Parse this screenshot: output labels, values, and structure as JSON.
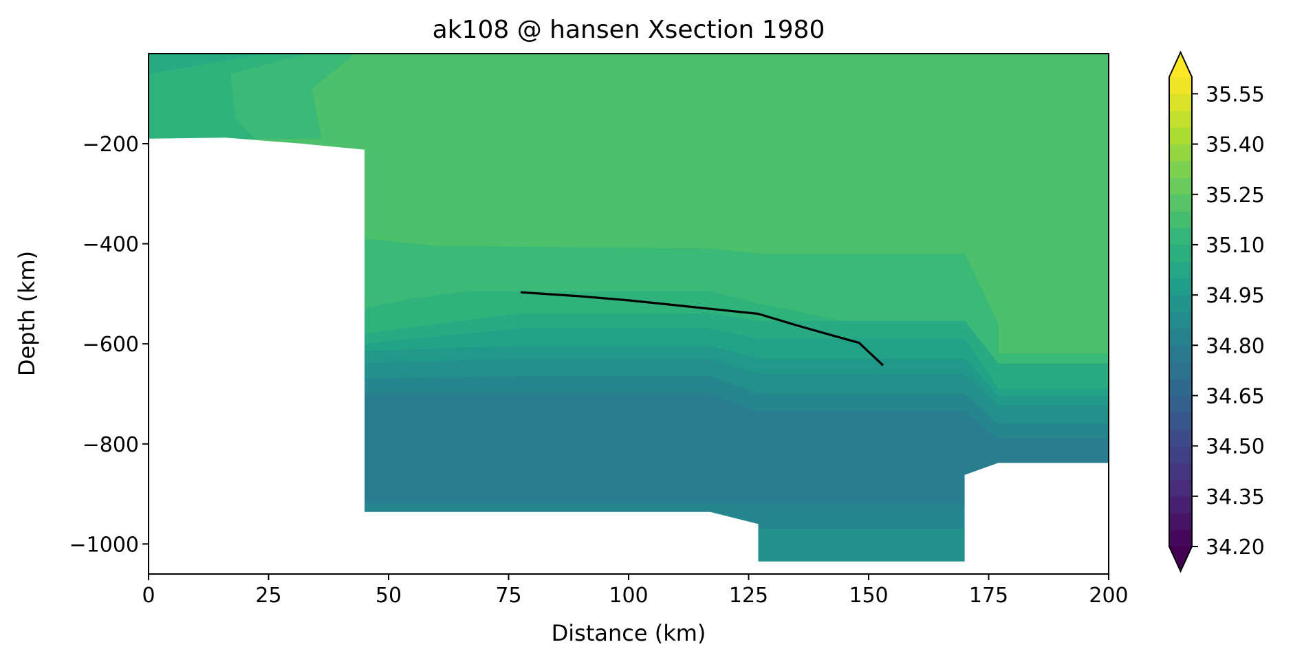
{
  "chart_data": {
    "type": "heatmap",
    "title": "ak108 @ hansen Xsection 1980",
    "xlabel": "Distance (km)",
    "ylabel": "Depth (km)",
    "xlim": [
      0,
      200
    ],
    "ylim": [
      -1060,
      -20
    ],
    "x_ticks": [
      0,
      25,
      50,
      75,
      100,
      125,
      150,
      175,
      200
    ],
    "x_tick_labels": [
      "0",
      "25",
      "50",
      "75",
      "100",
      "125",
      "150",
      "175",
      "200"
    ],
    "y_ticks": [
      -200,
      -400,
      -600,
      -800,
      -1000
    ],
    "y_tick_labels": [
      "−200",
      "−400",
      "−600",
      "−800",
      "−1000"
    ],
    "colormap": "viridis",
    "colorbar": {
      "min": 34.2,
      "max": 35.6,
      "step": 0.05,
      "extend": "both",
      "ticks": [
        34.2,
        34.35,
        34.5,
        34.65,
        34.8,
        34.95,
        35.1,
        35.25,
        35.4,
        35.55
      ],
      "tick_labels": [
        "34.20",
        "34.35",
        "34.50",
        "34.65",
        "34.80",
        "34.95",
        "35.10",
        "35.25",
        "35.40",
        "35.55"
      ]
    },
    "contour_bands": [
      {
        "level": 35.2,
        "poly": [
          [
            0,
            -20
          ],
          [
            200,
            -20
          ],
          [
            200,
            -1060
          ],
          [
            0,
            -1060
          ]
        ]
      },
      {
        "level": 35.15,
        "poly": [
          [
            0,
            -20
          ],
          [
            43,
            -20
          ],
          [
            34,
            -90
          ],
          [
            36,
            -190
          ],
          [
            0,
            -190
          ]
        ]
      },
      {
        "level": 35.1,
        "poly": [
          [
            0,
            -20
          ],
          [
            33,
            -20
          ],
          [
            17,
            -60
          ],
          [
            18,
            -150
          ],
          [
            22,
            -190
          ],
          [
            0,
            -190
          ]
        ]
      },
      {
        "level": 35.05,
        "poly": [
          [
            0,
            -20
          ],
          [
            24,
            -20
          ],
          [
            0,
            -60
          ]
        ]
      },
      {
        "level": 35.15,
        "poly": [
          [
            45,
            -390
          ],
          [
            60,
            -405
          ],
          [
            117,
            -410
          ],
          [
            127,
            -420
          ],
          [
            170,
            -420
          ],
          [
            177,
            -560
          ],
          [
            177,
            -620
          ],
          [
            200,
            -620
          ],
          [
            200,
            -1060
          ],
          [
            45,
            -1060
          ]
        ]
      },
      {
        "level": 35.1,
        "poly": [
          [
            45,
            -530
          ],
          [
            55,
            -510
          ],
          [
            67,
            -495
          ],
          [
            117,
            -495
          ],
          [
            127,
            -520
          ],
          [
            147,
            -560
          ],
          [
            170,
            -560
          ],
          [
            177,
            -650
          ],
          [
            200,
            -650
          ],
          [
            200,
            -1060
          ],
          [
            45,
            -1060
          ]
        ]
      },
      {
        "level": 35.05,
        "poly": [
          [
            45,
            -580
          ],
          [
            61,
            -560
          ],
          [
            77,
            -540
          ],
          [
            117,
            -540
          ],
          [
            127,
            -555
          ],
          [
            170,
            -555
          ],
          [
            177,
            -640
          ],
          [
            200,
            -640
          ],
          [
            200,
            -1060
          ],
          [
            45,
            -1060
          ]
        ]
      },
      {
        "level": 35.0,
        "poly": [
          [
            45,
            -600
          ],
          [
            77,
            -570
          ],
          [
            117,
            -570
          ],
          [
            127,
            -590
          ],
          [
            170,
            -590
          ],
          [
            177,
            -690
          ],
          [
            200,
            -690
          ],
          [
            200,
            -1060
          ],
          [
            45,
            -1060
          ]
        ]
      },
      {
        "level": 34.95,
        "poly": [
          [
            45,
            -615
          ],
          [
            77,
            -605
          ],
          [
            117,
            -605
          ],
          [
            127,
            -630
          ],
          [
            170,
            -630
          ],
          [
            177,
            -705
          ],
          [
            200,
            -705
          ],
          [
            200,
            -1060
          ],
          [
            45,
            -1060
          ]
        ]
      },
      {
        "level": 34.9,
        "poly": [
          [
            45,
            -640
          ],
          [
            77,
            -630
          ],
          [
            117,
            -630
          ],
          [
            127,
            -660
          ],
          [
            170,
            -660
          ],
          [
            177,
            -725
          ],
          [
            200,
            -725
          ],
          [
            200,
            -1060
          ],
          [
            45,
            -1060
          ]
        ]
      },
      {
        "level": 34.85,
        "poly": [
          [
            45,
            -670
          ],
          [
            77,
            -665
          ],
          [
            117,
            -665
          ],
          [
            127,
            -700
          ],
          [
            170,
            -700
          ],
          [
            177,
            -760
          ],
          [
            200,
            -760
          ],
          [
            200,
            -1060
          ],
          [
            45,
            -1060
          ]
        ]
      },
      {
        "level": 34.8,
        "poly": [
          [
            45,
            -700
          ],
          [
            77,
            -700
          ],
          [
            117,
            -700
          ],
          [
            127,
            -735
          ],
          [
            170,
            -735
          ],
          [
            177,
            -790
          ],
          [
            200,
            -790
          ],
          [
            200,
            -1060
          ],
          [
            45,
            -1060
          ]
        ]
      },
      {
        "level": 34.85,
        "poly": [
          [
            45,
            -920
          ],
          [
            200,
            -920
          ],
          [
            200,
            -1060
          ],
          [
            45,
            -1060
          ]
        ]
      },
      {
        "level": 34.9,
        "poly": [
          [
            117,
            -980
          ],
          [
            128,
            -970
          ],
          [
            170,
            -970
          ],
          [
            170,
            -1060
          ],
          [
            117,
            -1060
          ]
        ]
      }
    ],
    "line": {
      "x": [
        77.5,
        90,
        100,
        110,
        120,
        127,
        135,
        142,
        148,
        151,
        153
      ],
      "y": [
        -497,
        -505,
        -513,
        -523,
        -533,
        -540,
        -563,
        -582,
        -598,
        -625,
        -643
      ]
    },
    "mask_polygons": [
      [
        [
          0,
          -190
        ],
        [
          16,
          -188
        ],
        [
          32,
          -200
        ],
        [
          45,
          -212
        ],
        [
          45,
          -936
        ],
        [
          117,
          -936
        ],
        [
          127,
          -960
        ],
        [
          127,
          -1035
        ],
        [
          170,
          -1035
        ],
        [
          170,
          -862
        ],
        [
          177,
          -838
        ],
        [
          200,
          -838
        ],
        [
          200,
          -1060
        ],
        [
          0,
          -1060
        ]
      ]
    ]
  }
}
